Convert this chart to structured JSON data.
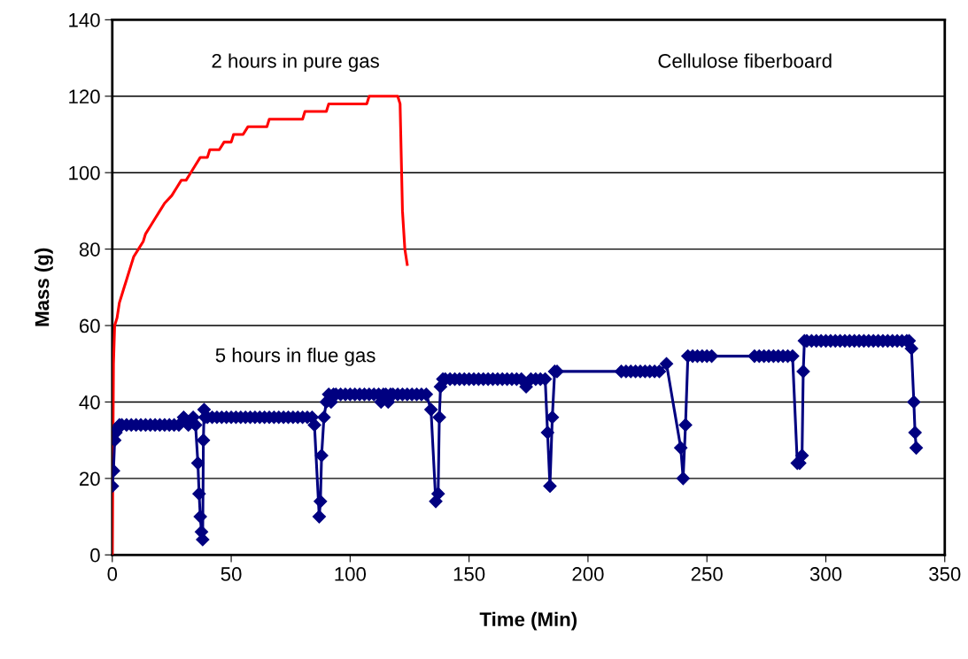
{
  "chart_data": {
    "type": "line",
    "xlabel": "Time (Min)",
    "ylabel": "Mass (g)",
    "xlim": [
      0,
      350
    ],
    "xticks": [
      0,
      50,
      100,
      150,
      200,
      250,
      300,
      350
    ],
    "ylim": [
      0,
      140
    ],
    "yticks": [
      0,
      20,
      40,
      60,
      80,
      100,
      120,
      140
    ],
    "grid": "y",
    "legend": false,
    "annotations": [
      "Cellulose fiberboard"
    ],
    "series": [
      {
        "name": "2 hours in pure gas",
        "color": "#ff0000",
        "marker": "none",
        "x": [
          0,
          0.5,
          1,
          2,
          3,
          4,
          5,
          6,
          7,
          8,
          9,
          11,
          13,
          14,
          16,
          18,
          20,
          22,
          25,
          27,
          29,
          31,
          33,
          35,
          37,
          40,
          41,
          45,
          47,
          50,
          51,
          55,
          57,
          60,
          65,
          66,
          80,
          81,
          90,
          91,
          107,
          108,
          120,
          121,
          122,
          123,
          124
        ],
        "values": [
          0,
          50,
          60,
          62,
          66,
          68,
          70,
          72,
          74,
          76,
          78,
          80,
          82,
          84,
          86,
          88,
          90,
          92,
          94,
          96,
          98,
          98,
          100,
          102,
          104,
          104,
          106,
          106,
          108,
          108,
          110,
          110,
          112,
          112,
          112,
          114,
          114,
          116,
          116,
          118,
          118,
          120,
          120,
          118,
          90,
          80,
          76
        ]
      },
      {
        "name": "5 hours in flue gas",
        "color": "#000080",
        "marker": "diamond",
        "x": [
          0,
          0.5,
          1,
          1.5,
          2,
          3,
          4,
          6,
          8,
          10,
          12,
          14,
          16,
          18,
          20,
          22,
          24,
          26,
          28,
          30,
          32,
          34,
          35,
          36,
          36.5,
          37,
          37.5,
          38,
          38.3,
          38.6,
          39,
          40,
          42,
          44,
          46,
          48,
          50,
          52,
          54,
          56,
          58,
          60,
          62,
          64,
          66,
          68,
          70,
          72,
          74,
          76,
          78,
          80,
          82,
          84,
          85,
          87,
          87.5,
          88,
          89,
          90,
          91,
          92,
          93,
          94,
          96,
          98,
          100,
          102,
          104,
          106,
          108,
          110,
          112,
          113,
          114,
          115,
          116,
          117,
          118,
          120,
          122,
          124,
          126,
          128,
          130,
          132,
          134,
          136,
          137,
          137.5,
          138,
          139,
          140,
          142,
          144,
          146,
          148,
          150,
          152,
          154,
          156,
          158,
          160,
          162,
          164,
          166,
          168,
          170,
          172,
          174,
          176,
          178,
          180,
          182,
          183,
          184,
          185,
          186,
          187,
          214,
          216,
          218,
          220,
          222,
          224,
          226,
          228,
          230,
          233,
          239,
          240,
          241,
          242,
          244,
          246,
          248,
          250,
          252,
          270,
          272,
          274,
          276,
          278,
          280,
          282,
          284,
          286,
          288,
          289,
          290,
          290.5,
          291,
          292,
          294,
          296,
          298,
          300,
          302,
          304,
          306,
          308,
          310,
          312,
          314,
          316,
          318,
          320,
          322,
          324,
          326,
          328,
          330,
          332,
          334,
          335,
          336,
          337,
          337.5,
          338
        ],
        "values": [
          18,
          22,
          30,
          32,
          33,
          34,
          34,
          34,
          34,
          34,
          34,
          34,
          34,
          34,
          34,
          34,
          34,
          34,
          34,
          36,
          34,
          36,
          34,
          24,
          16,
          10,
          6,
          4,
          30,
          38,
          36,
          36,
          36,
          36,
          36,
          36,
          36,
          36,
          36,
          36,
          36,
          36,
          36,
          36,
          36,
          36,
          36,
          36,
          36,
          36,
          36,
          36,
          36,
          36,
          34,
          10,
          14,
          26,
          36,
          40,
          42,
          40,
          42,
          42,
          42,
          42,
          42,
          42,
          42,
          42,
          42,
          42,
          42,
          40,
          42,
          42,
          40,
          42,
          42,
          42,
          42,
          42,
          42,
          42,
          42,
          42,
          38,
          14,
          16,
          36,
          44,
          46,
          46,
          46,
          46,
          46,
          46,
          46,
          46,
          46,
          46,
          46,
          46,
          46,
          46,
          46,
          46,
          46,
          46,
          44,
          46,
          46,
          46,
          46,
          32,
          18,
          36,
          48,
          48,
          48,
          48,
          48,
          48,
          48,
          48,
          48,
          48,
          48,
          50,
          28,
          20,
          34,
          52,
          52,
          52,
          52,
          52,
          52,
          52,
          52,
          52,
          52,
          52,
          52,
          52,
          52,
          52,
          24,
          24,
          26,
          48,
          56,
          56,
          56,
          56,
          56,
          56,
          56,
          56,
          56,
          56,
          56,
          56,
          56,
          56,
          56,
          56,
          56,
          56,
          56,
          56,
          56,
          56,
          56,
          56,
          54,
          40,
          32,
          28
        ]
      }
    ]
  }
}
